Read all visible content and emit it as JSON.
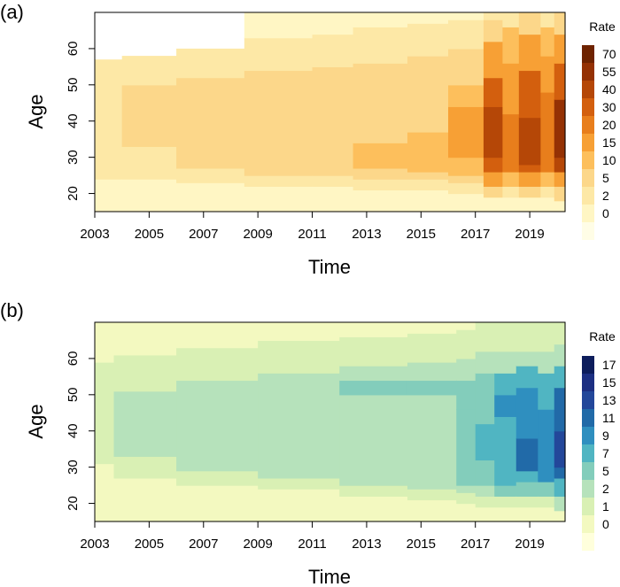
{
  "chart_data": [
    {
      "panel_label": "(a)",
      "type": "heatmap",
      "xlabel": "Time",
      "ylabel": "Age",
      "x_ticks": [
        "2003",
        "2005",
        "2007",
        "2009",
        "2011",
        "2013",
        "2015",
        "2017",
        "2019"
      ],
      "x_range": [
        2003,
        2020.3
      ],
      "y_ticks": [
        "20",
        "30",
        "40",
        "50",
        "60"
      ],
      "y_range": [
        15,
        70
      ],
      "legend_title": "Rate",
      "legend_breaks": [
        "70",
        "55",
        "40",
        "30",
        "20",
        "15",
        "10",
        "5",
        "2",
        "0"
      ],
      "legend_colors": [
        "#fffde6",
        "#fff6c4",
        "#fde8a6",
        "#fcd78a",
        "#fdbf5c",
        "#f7a035",
        "#e87e1c",
        "#d35f0e",
        "#b54707",
        "#943104",
        "#6e2300"
      ],
      "bands": [
        {
          "from": 2003.0,
          "to": 2004.0,
          "rows": [
            [
              15,
              24,
              1
            ],
            [
              24,
              57,
              2
            ]
          ]
        },
        {
          "from": 2004.0,
          "to": 2006.0,
          "rows": [
            [
              15,
              24,
              1
            ],
            [
              24,
              33,
              2
            ],
            [
              33,
              50,
              3
            ],
            [
              50,
              58,
              2
            ]
          ]
        },
        {
          "from": 2006.0,
          "to": 2008.5,
          "rows": [
            [
              15,
              23,
              1
            ],
            [
              23,
              27,
              2
            ],
            [
              27,
              52,
              3
            ],
            [
              52,
              60,
              2
            ]
          ]
        },
        {
          "from": 2008.5,
          "to": 2011.0,
          "rows": [
            [
              15,
              22,
              1
            ],
            [
              22,
              25,
              2
            ],
            [
              25,
              54,
              3
            ],
            [
              54,
              63,
              2
            ],
            [
              63,
              70,
              1
            ]
          ]
        },
        {
          "from": 2011.0,
          "to": 2012.5,
          "rows": [
            [
              15,
              22,
              1
            ],
            [
              22,
              25,
              2
            ],
            [
              25,
              55,
              3
            ],
            [
              55,
              64,
              2
            ],
            [
              64,
              70,
              1
            ]
          ]
        },
        {
          "from": 2012.5,
          "to": 2014.5,
          "rows": [
            [
              15,
              21,
              1
            ],
            [
              21,
              24,
              2
            ],
            [
              24,
              27,
              3
            ],
            [
              27,
              34,
              4
            ],
            [
              34,
              56,
              3
            ],
            [
              56,
              66,
              2
            ],
            [
              66,
              70,
              1
            ]
          ]
        },
        {
          "from": 2014.5,
          "to": 2016.0,
          "rows": [
            [
              15,
              21,
              1
            ],
            [
              21,
              24,
              2
            ],
            [
              24,
              26,
              3
            ],
            [
              26,
              37,
              4
            ],
            [
              37,
              58,
              3
            ],
            [
              58,
              67,
              2
            ],
            [
              67,
              70,
              1
            ]
          ]
        },
        {
          "from": 2016.0,
          "to": 2017.3,
          "rows": [
            [
              15,
              20,
              1
            ],
            [
              20,
              23,
              2
            ],
            [
              23,
              25,
              3
            ],
            [
              25,
              30,
              4
            ],
            [
              30,
              44,
              5
            ],
            [
              44,
              50,
              4
            ],
            [
              50,
              60,
              3
            ],
            [
              60,
              68,
              2
            ],
            [
              68,
              70,
              1
            ]
          ]
        },
        {
          "from": 2017.3,
          "to": 2018.0,
          "rows": [
            [
              15,
              19,
              1
            ],
            [
              19,
              22,
              3
            ],
            [
              22,
              26,
              5
            ],
            [
              26,
              30,
              7
            ],
            [
              30,
              44,
              8
            ],
            [
              44,
              52,
              7
            ],
            [
              52,
              62,
              5
            ],
            [
              62,
              68,
              3
            ],
            [
              68,
              70,
              2
            ]
          ]
        },
        {
          "from": 2018.0,
          "to": 2018.6,
          "rows": [
            [
              15,
              19,
              1
            ],
            [
              19,
              22,
              2
            ],
            [
              22,
              26,
              4
            ],
            [
              26,
              42,
              6
            ],
            [
              42,
              56,
              5
            ],
            [
              56,
              66,
              4
            ],
            [
              66,
              70,
              2
            ]
          ]
        },
        {
          "from": 2018.6,
          "to": 2019.4,
          "rows": [
            [
              15,
              19,
              1
            ],
            [
              19,
              22,
              3
            ],
            [
              22,
              26,
              5
            ],
            [
              26,
              28,
              7
            ],
            [
              28,
              41,
              8
            ],
            [
              41,
              54,
              7
            ],
            [
              54,
              64,
              5
            ],
            [
              64,
              70,
              3
            ]
          ]
        },
        {
          "from": 2019.4,
          "to": 2019.9,
          "rows": [
            [
              15,
              19,
              1
            ],
            [
              19,
              22,
              2
            ],
            [
              22,
              26,
              4
            ],
            [
              26,
              48,
              6
            ],
            [
              48,
              58,
              5
            ],
            [
              58,
              66,
              4
            ],
            [
              66,
              70,
              2
            ]
          ]
        },
        {
          "from": 2019.9,
          "to": 2020.3,
          "rows": [
            [
              15,
              18,
              1
            ],
            [
              18,
              22,
              3
            ],
            [
              22,
              26,
              5
            ],
            [
              26,
              30,
              8
            ],
            [
              30,
              46,
              9
            ],
            [
              46,
              56,
              7
            ],
            [
              56,
              64,
              5
            ],
            [
              64,
              70,
              3
            ]
          ]
        }
      ]
    },
    {
      "panel_label": "(b)",
      "type": "heatmap",
      "xlabel": "Time",
      "ylabel": "Age",
      "x_ticks": [
        "2003",
        "2005",
        "2007",
        "2009",
        "2011",
        "2013",
        "2015",
        "2017",
        "2019"
      ],
      "x_range": [
        2003,
        2020.3
      ],
      "y_ticks": [
        "20",
        "30",
        "40",
        "50",
        "60"
      ],
      "y_range": [
        15,
        70
      ],
      "legend_title": "Rate",
      "legend_breaks": [
        "17",
        "15",
        "13",
        "11",
        "9",
        "7",
        "5",
        "2",
        "1",
        "0"
      ],
      "legend_colors": [
        "#ffffdc",
        "#f3f9c0",
        "#d9f0b4",
        "#b6e2bb",
        "#83cdbb",
        "#50b5c2",
        "#2f8fbf",
        "#216aa8",
        "#23479a",
        "#1c2f82",
        "#0d1d5c"
      ],
      "bands": [
        {
          "from": 2003.0,
          "to": 2003.7,
          "rows": [
            [
              15,
              31,
              1
            ],
            [
              31,
              59,
              2
            ],
            [
              59,
              70,
              1
            ]
          ]
        },
        {
          "from": 2003.7,
          "to": 2006.0,
          "rows": [
            [
              15,
              27,
              1
            ],
            [
              27,
              33,
              2
            ],
            [
              33,
              51,
              3
            ],
            [
              51,
              61,
              2
            ],
            [
              61,
              70,
              1
            ]
          ]
        },
        {
          "from": 2006.0,
          "to": 2009.0,
          "rows": [
            [
              15,
              25,
              1
            ],
            [
              25,
              29,
              2
            ],
            [
              29,
              54,
              3
            ],
            [
              54,
              63,
              2
            ],
            [
              63,
              70,
              1
            ]
          ]
        },
        {
          "from": 2009.0,
          "to": 2012.0,
          "rows": [
            [
              15,
              24,
              1
            ],
            [
              24,
              27,
              2
            ],
            [
              27,
              56,
              3
            ],
            [
              56,
              65,
              2
            ],
            [
              65,
              70,
              1
            ]
          ]
        },
        {
          "from": 2012.0,
          "to": 2014.5,
          "rows": [
            [
              15,
              22,
              1
            ],
            [
              22,
              25,
              2
            ],
            [
              25,
              50,
              3
            ],
            [
              50,
              54,
              4
            ],
            [
              54,
              58,
              3
            ],
            [
              58,
              66,
              2
            ],
            [
              66,
              70,
              1
            ]
          ]
        },
        {
          "from": 2014.5,
          "to": 2016.3,
          "rows": [
            [
              15,
              21,
              1
            ],
            [
              21,
              24,
              2
            ],
            [
              24,
              50,
              3
            ],
            [
              50,
              54,
              4
            ],
            [
              54,
              59,
              3
            ],
            [
              59,
              67,
              2
            ],
            [
              67,
              70,
              1
            ]
          ]
        },
        {
          "from": 2016.3,
          "to": 2017.0,
          "rows": [
            [
              15,
              20,
              1
            ],
            [
              20,
              23,
              2
            ],
            [
              23,
              25,
              3
            ],
            [
              25,
              46,
              4
            ],
            [
              46,
              54,
              4
            ],
            [
              54,
              60,
              3
            ],
            [
              60,
              68,
              2
            ],
            [
              68,
              70,
              1
            ]
          ]
        },
        {
          "from": 2017.0,
          "to": 2017.7,
          "rows": [
            [
              15,
              19,
              1
            ],
            [
              19,
              22,
              2
            ],
            [
              22,
              25,
              3
            ],
            [
              25,
              32,
              4
            ],
            [
              32,
              42,
              5
            ],
            [
              42,
              56,
              4
            ],
            [
              56,
              62,
              3
            ],
            [
              62,
              70,
              2
            ]
          ]
        },
        {
          "from": 2017.7,
          "to": 2018.5,
          "rows": [
            [
              15,
              19,
              1
            ],
            [
              19,
              22,
              2
            ],
            [
              22,
              25,
              4
            ],
            [
              25,
              44,
              5
            ],
            [
              44,
              50,
              6
            ],
            [
              50,
              56,
              5
            ],
            [
              56,
              62,
              3
            ],
            [
              62,
              70,
              2
            ]
          ]
        },
        {
          "from": 2018.5,
          "to": 2019.3,
          "rows": [
            [
              15,
              19,
              1
            ],
            [
              19,
              22,
              2
            ],
            [
              22,
              26,
              4
            ],
            [
              26,
              29,
              5
            ],
            [
              29,
              38,
              7
            ],
            [
              38,
              52,
              6
            ],
            [
              52,
              58,
              5
            ],
            [
              58,
              62,
              3
            ],
            [
              62,
              70,
              2
            ]
          ]
        },
        {
          "from": 2019.3,
          "to": 2019.9,
          "rows": [
            [
              15,
              19,
              1
            ],
            [
              19,
              22,
              2
            ],
            [
              22,
              26,
              4
            ],
            [
              26,
              46,
              6
            ],
            [
              46,
              56,
              5
            ],
            [
              56,
              62,
              3
            ],
            [
              62,
              70,
              2
            ]
          ]
        },
        {
          "from": 2019.9,
          "to": 2020.3,
          "rows": [
            [
              15,
              18,
              1
            ],
            [
              18,
              22,
              3
            ],
            [
              22,
              27,
              5
            ],
            [
              27,
              30,
              7
            ],
            [
              30,
              40,
              8
            ],
            [
              40,
              52,
              7
            ],
            [
              52,
              58,
              5
            ],
            [
              58,
              64,
              3
            ],
            [
              64,
              70,
              2
            ]
          ]
        }
      ]
    }
  ]
}
